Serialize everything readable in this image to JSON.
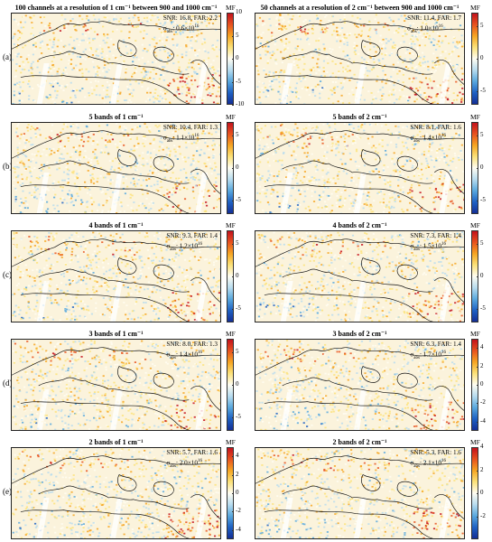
{
  "rows": [
    {
      "letter": "(a)",
      "panels": [
        {
          "title": "100 channels at a resolution of 1 cm⁻¹ between 900 and 1000 cm⁻¹",
          "snr_far": "SNR: 16.8, FAR: 2.2",
          "sigma": "σ",
          "sigma_sub": "abs",
          "sigma_val": ": 0.6×10",
          "sigma_exp": "16"
        },
        {
          "title": "50 channels at a resolution of 2 cm⁻¹ between 900 and 1000 cm⁻¹",
          "snr_far": "SNR: 11.4, FAR: 1.7",
          "sigma": "σ",
          "sigma_sub": "abs",
          "sigma_val": ": 1.0×10",
          "sigma_exp": "16"
        }
      ],
      "colorbars": [
        {
          "label": "MF",
          "ticks": [
            "10",
            "5",
            "0",
            "-5",
            "-10"
          ],
          "range": [
            -10,
            10
          ]
        },
        {
          "label": "MF",
          "ticks": [
            "5",
            "0",
            "-5"
          ],
          "range": [
            -7,
            7
          ]
        }
      ]
    },
    {
      "letter": "(b)",
      "panels": [
        {
          "title": "5 bands of 1 cm⁻¹",
          "snr_far": "SNR: 10.4, FAR: 1.3",
          "sigma": "σ",
          "sigma_sub": "abs",
          "sigma_val": ": 1.1×10",
          "sigma_exp": "16"
        },
        {
          "title": "5 bands of 2 cm⁻¹",
          "snr_far": "SNR: 8.1, FAR: 1.6",
          "sigma": "σ",
          "sigma_sub": "abs",
          "sigma_val": ": 1.4×10",
          "sigma_exp": "16"
        }
      ],
      "colorbars": [
        {
          "label": "MF",
          "ticks": [
            "5",
            "0",
            "-5"
          ],
          "range": [
            -7,
            7
          ]
        },
        {
          "label": "MF",
          "ticks": [
            "5",
            "0",
            "-5"
          ],
          "range": [
            -7,
            7
          ]
        }
      ]
    },
    {
      "letter": "(c)",
      "panels": [
        {
          "title": "4 bands of 1 cm⁻¹",
          "snr_far": "SNR: 9.3, FAR: 1.4",
          "sigma": "σ",
          "sigma_sub": "abs",
          "sigma_val": ": 1.2×10",
          "sigma_exp": "16"
        },
        {
          "title": "4 bands of 2 cm⁻¹",
          "snr_far": "SNR: 7.3, FAR: 1.4",
          "sigma": "σ",
          "sigma_sub": "abs",
          "sigma_val": ": 1.5×10",
          "sigma_exp": "16"
        }
      ],
      "colorbars": [
        {
          "label": "MF",
          "ticks": [
            "5",
            "0",
            "-5"
          ],
          "range": [
            -7,
            7
          ]
        },
        {
          "label": "MF",
          "ticks": [
            "5",
            "0",
            "-5"
          ],
          "range": [
            -7,
            7
          ]
        }
      ]
    },
    {
      "letter": "(d)",
      "panels": [
        {
          "title": "3 bands of 1 cm⁻¹",
          "snr_far": "SNR: 8.0, FAR: 1.3",
          "sigma": "σ",
          "sigma_sub": "abs",
          "sigma_val": ": 1.4×10",
          "sigma_exp": "16"
        },
        {
          "title": "3 bands of 2 cm⁻¹",
          "snr_far": "SNR: 6.3, FAR: 1.4",
          "sigma": "σ",
          "sigma_sub": "abs",
          "sigma_val": ": 1.7×10",
          "sigma_exp": "16"
        }
      ],
      "colorbars": [
        {
          "label": "MF",
          "ticks": [
            "5",
            "0",
            "-5"
          ],
          "range": [
            -7,
            7
          ]
        },
        {
          "label": "MF",
          "ticks": [
            "4",
            "2",
            "0",
            "-2",
            "-4"
          ],
          "range": [
            -5,
            5
          ]
        }
      ]
    },
    {
      "letter": "(e)",
      "panels": [
        {
          "title": "2 bands of 1 cm⁻¹",
          "snr_far": "SNR: 5.7, FAR: 1.6",
          "sigma": "σ",
          "sigma_sub": "abs",
          "sigma_val": ": 2.0×10",
          "sigma_exp": "16"
        },
        {
          "title": "2 bands of 2 cm⁻¹",
          "snr_far": "SNR: 5.3, FAR: 1.6",
          "sigma": "σ",
          "sigma_sub": "abs",
          "sigma_val": ": 2.1×10",
          "sigma_exp": "16"
        }
      ],
      "colorbars": [
        {
          "label": "MF",
          "ticks": [
            "4",
            "2",
            "0",
            "-2",
            "-4"
          ],
          "range": [
            -5,
            5
          ]
        },
        {
          "label": "MF",
          "ticks": [
            "4",
            "2",
            "0",
            "-2"
          ],
          "range": [
            -4,
            4
          ]
        }
      ]
    }
  ],
  "colors": {
    "colormap": [
      "#c4121d",
      "#e8531f",
      "#f6a623",
      "#fbe27a",
      "#fffdf2",
      "#b8dcef",
      "#5aa9de",
      "#1f62c4",
      "#142f96"
    ],
    "land_base": "#fbf3dc",
    "hotspot": "#d33a1f",
    "coast": "#111111"
  }
}
